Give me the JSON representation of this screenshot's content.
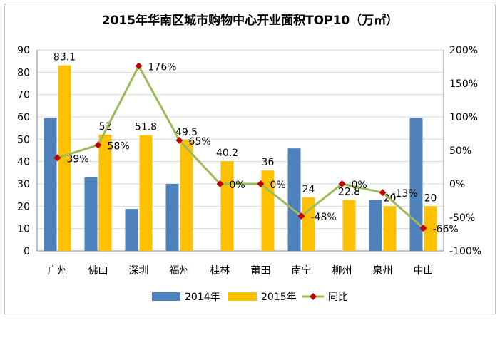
{
  "chart_data": {
    "type": "bar",
    "title": "2015年华南区城市购物中心开业面积TOP10（万㎡）",
    "categories": [
      "广州",
      "佛山",
      "深圳",
      "福州",
      "桂林",
      "莆田",
      "南宁",
      "柳州",
      "泉州",
      "中山"
    ],
    "series": [
      {
        "name": "2014年",
        "type": "bar",
        "axis": "left",
        "color": "#4f81bd",
        "values": [
          59.5,
          33,
          18.8,
          30,
          0,
          0,
          45.9,
          0,
          22.8,
          59.5
        ]
      },
      {
        "name": "2015年",
        "type": "bar",
        "axis": "left",
        "color": "#ffc000",
        "values": [
          83.1,
          52,
          51.8,
          49.5,
          40.2,
          36,
          24,
          22.8,
          20,
          20
        ],
        "labels": [
          "83.1",
          "52",
          "51.8",
          "49.5",
          "40.2",
          "36",
          "24",
          "22.8",
          "20",
          "20"
        ]
      },
      {
        "name": "同比",
        "type": "line",
        "axis": "right",
        "color": "#9bbb59",
        "marker_color": "#c00000",
        "values": [
          39,
          58,
          176,
          65,
          0,
          0,
          -48,
          0,
          -13,
          -66
        ],
        "labels": [
          "39%",
          "58%",
          "176%",
          "65%",
          "0%",
          "0%",
          "-48%",
          "0%",
          "-13%",
          "-66%"
        ]
      }
    ],
    "y_left": {
      "range": [
        0,
        90
      ],
      "ticks": [
        "0",
        "10",
        "20",
        "30",
        "40",
        "50",
        "60",
        "70",
        "80",
        "90"
      ]
    },
    "y_right": {
      "range": [
        -100,
        200
      ],
      "ticks": [
        "-100%",
        "-50%",
        "0%",
        "50%",
        "100%",
        "150%",
        "200%"
      ]
    },
    "grid": true,
    "legend": "bottom"
  }
}
